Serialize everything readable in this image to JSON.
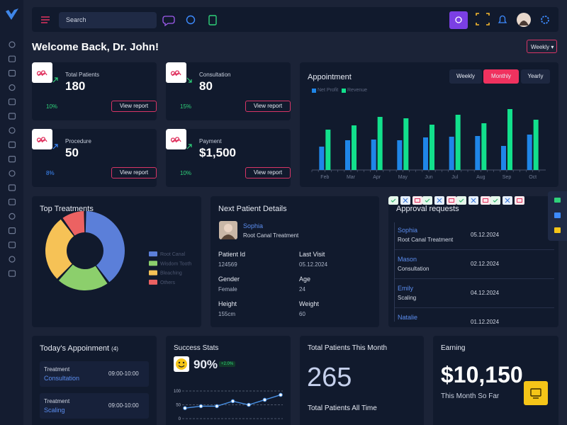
{
  "topbar": {
    "search_placeholder": "Search"
  },
  "header": {
    "title": "Welcome Back, Dr. John!",
    "period": "Weekly"
  },
  "stats": [
    {
      "label": "Total Patients",
      "value": 180,
      "change": "10%",
      "trend": "up",
      "color": "#2fd27a",
      "action": "View report"
    },
    {
      "label": "Consultation",
      "value": 80,
      "change": "15%",
      "trend": "down",
      "color": "#2fd27a",
      "action": "View report"
    },
    {
      "label": "Procedure",
      "value": 50,
      "change": "8%",
      "trend": "up",
      "color": "#3d8bff",
      "action": "View report"
    },
    {
      "label": "Payment",
      "value": "$1,500",
      "change": "10%",
      "trend": "up",
      "color": "#2fd27a",
      "action": "View report"
    }
  ],
  "appointment_chart": {
    "type": "bar",
    "title": "Appointment",
    "tabs": [
      "Weekly",
      "Monthly",
      "Yearly"
    ],
    "active_tab": 1,
    "categories": [
      "Feb",
      "Mar",
      "Apr",
      "May",
      "Jun",
      "Jul",
      "Aug",
      "Sep",
      "Oct"
    ],
    "series": [
      {
        "name": "Net Profit",
        "color": "#1f86e8",
        "values": [
          33,
          42,
          43,
          42,
          46,
          47,
          48,
          34,
          50
        ]
      },
      {
        "name": "Revenue",
        "color": "#12e08c",
        "values": [
          57,
          63,
          75,
          73,
          64,
          78,
          66,
          86,
          71
        ]
      }
    ],
    "ylim": [
      0,
      90
    ]
  },
  "treatments_chart": {
    "type": "pie",
    "title": "Top Treatments",
    "donut": true,
    "categories": [
      "Root Canal",
      "Wisdom Tooth",
      "Bleaching",
      "Others"
    ],
    "values": [
      40,
      22,
      28,
      10
    ],
    "colors": [
      "#5b7fd9",
      "#8ccf6c",
      "#f6c256",
      "#ec6262"
    ]
  },
  "next_patient": {
    "title": "Next Patient Details",
    "name": "Sophia",
    "treatment": "Root Canal Treatment",
    "fields": [
      {
        "label": "Patient Id",
        "value": "124569"
      },
      {
        "label": "Last Visit",
        "value": "05.12.2024"
      },
      {
        "label": "Gender",
        "value": "Female"
      },
      {
        "label": "Age",
        "value": "24"
      },
      {
        "label": "Height",
        "value": "155cm"
      },
      {
        "label": "Weight",
        "value": "60"
      }
    ]
  },
  "approvals": {
    "title": "Approval requests",
    "rows": [
      {
        "name": "Sophia",
        "treatment": "Root Canal Treatment",
        "date": "05.12.2024"
      },
      {
        "name": "Mason",
        "treatment": "Consultation",
        "date": "02.12.2024"
      },
      {
        "name": "Emily",
        "treatment": "Scaling",
        "date": "04.12.2024"
      },
      {
        "name": "Natalie",
        "date": "01.12.2024"
      }
    ]
  },
  "todays_appointments": {
    "title": "Today's Appoinment",
    "count": "(4)",
    "rows": [
      {
        "type": "Treatment",
        "name": "Consultation",
        "time": "09:00-10:00"
      },
      {
        "type": "Treatment",
        "name": "Scaling",
        "time": "09:00-10:00"
      }
    ]
  },
  "success_chart": {
    "type": "line",
    "title": "Success Stats",
    "headline": "90%",
    "badge": "+2.0%",
    "categories": [
      null,
      null,
      null,
      null,
      null,
      null,
      null
    ],
    "values": [
      38,
      45,
      45,
      63,
      50,
      68,
      86
    ],
    "color": "#4a92e6",
    "ylim": [
      0,
      100
    ],
    "yticks": [
      0,
      50,
      100
    ],
    "grid": true
  },
  "patients_month": {
    "title": "Total Patients This Month",
    "value": 265,
    "subtitle": "Total Patients All Time"
  },
  "earning": {
    "title": "Earning",
    "value": "$10,150",
    "caption": "This Month So Far"
  }
}
